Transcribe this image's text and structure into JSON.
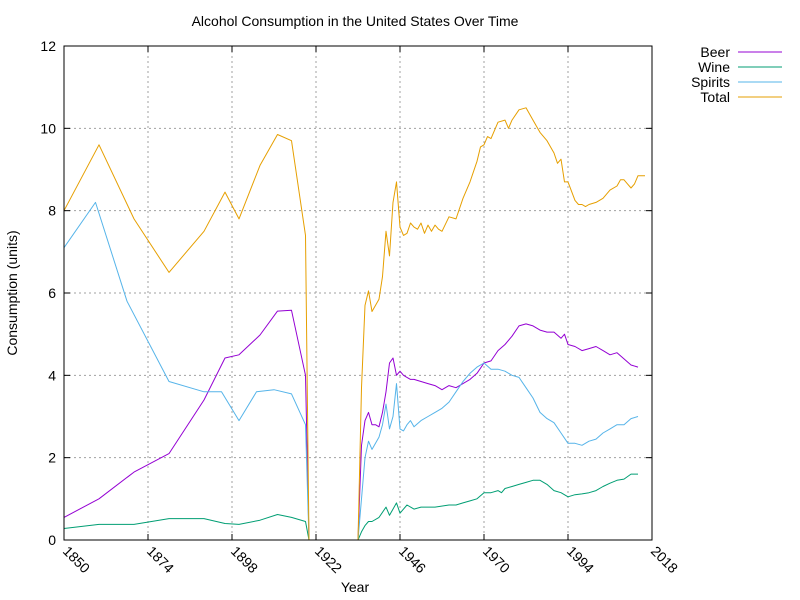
{
  "chart_data": {
    "type": "line",
    "title": "Alcohol Consumption in the United States Over Time",
    "xlabel": "Year",
    "ylabel": "Consumption (units)",
    "xlim": [
      1850,
      2018
    ],
    "ylim": [
      0,
      12
    ],
    "xticks": [
      1850,
      1874,
      1898,
      1922,
      1946,
      1970,
      1994,
      2018
    ],
    "yticks": [
      0,
      2,
      4,
      6,
      8,
      10,
      12
    ],
    "grid": true,
    "legend_position": "top-right, outside plot",
    "series": [
      {
        "name": "Beer",
        "color": "#9400d3",
        "points": [
          [
            1850,
            0.55
          ],
          [
            1860,
            1.0
          ],
          [
            1870,
            1.65
          ],
          [
            1880,
            2.1
          ],
          [
            1890,
            3.4
          ],
          [
            1896,
            4.42
          ],
          [
            1900,
            4.5
          ],
          [
            1906,
            4.98
          ],
          [
            1911,
            5.56
          ],
          [
            1915,
            5.58
          ],
          [
            1919,
            4.0
          ],
          [
            1920,
            0.0
          ],
          [
            1934,
            0.0
          ],
          [
            1935,
            2.3
          ],
          [
            1936,
            2.9
          ],
          [
            1937,
            3.1
          ],
          [
            1938,
            2.8
          ],
          [
            1939,
            2.8
          ],
          [
            1940,
            2.75
          ],
          [
            1941,
            3.1
          ],
          [
            1942,
            3.6
          ],
          [
            1943,
            4.3
          ],
          [
            1944,
            4.42
          ],
          [
            1945,
            4.0
          ],
          [
            1946,
            4.1
          ],
          [
            1947,
            4.0
          ],
          [
            1948,
            3.95
          ],
          [
            1949,
            3.9
          ],
          [
            1950,
            3.9
          ],
          [
            1952,
            3.85
          ],
          [
            1954,
            3.8
          ],
          [
            1956,
            3.75
          ],
          [
            1958,
            3.65
          ],
          [
            1960,
            3.75
          ],
          [
            1962,
            3.7
          ],
          [
            1964,
            3.8
          ],
          [
            1966,
            3.9
          ],
          [
            1968,
            4.05
          ],
          [
            1970,
            4.3
          ],
          [
            1972,
            4.35
          ],
          [
            1974,
            4.6
          ],
          [
            1976,
            4.75
          ],
          [
            1978,
            4.95
          ],
          [
            1980,
            5.2
          ],
          [
            1982,
            5.25
          ],
          [
            1984,
            5.2
          ],
          [
            1986,
            5.1
          ],
          [
            1988,
            5.05
          ],
          [
            1990,
            5.05
          ],
          [
            1992,
            4.9
          ],
          [
            1993,
            5.0
          ],
          [
            1994,
            4.75
          ],
          [
            1996,
            4.7
          ],
          [
            1998,
            4.6
          ],
          [
            2000,
            4.65
          ],
          [
            2002,
            4.7
          ],
          [
            2004,
            4.6
          ],
          [
            2006,
            4.5
          ],
          [
            2008,
            4.55
          ],
          [
            2010,
            4.4
          ],
          [
            2012,
            4.25
          ],
          [
            2014,
            4.2
          ]
        ]
      },
      {
        "name": "Wine",
        "color": "#009e73",
        "points": [
          [
            1850,
            0.28
          ],
          [
            1860,
            0.38
          ],
          [
            1870,
            0.38
          ],
          [
            1880,
            0.52
          ],
          [
            1890,
            0.52
          ],
          [
            1896,
            0.4
          ],
          [
            1900,
            0.38
          ],
          [
            1906,
            0.48
          ],
          [
            1911,
            0.62
          ],
          [
            1915,
            0.55
          ],
          [
            1919,
            0.45
          ],
          [
            1920,
            0.0
          ],
          [
            1934,
            0.0
          ],
          [
            1935,
            0.2
          ],
          [
            1936,
            0.35
          ],
          [
            1937,
            0.45
          ],
          [
            1938,
            0.45
          ],
          [
            1940,
            0.55
          ],
          [
            1942,
            0.8
          ],
          [
            1943,
            0.6
          ],
          [
            1944,
            0.75
          ],
          [
            1945,
            0.9
          ],
          [
            1946,
            0.65
          ],
          [
            1947,
            0.75
          ],
          [
            1948,
            0.85
          ],
          [
            1950,
            0.75
          ],
          [
            1952,
            0.8
          ],
          [
            1956,
            0.8
          ],
          [
            1960,
            0.85
          ],
          [
            1962,
            0.85
          ],
          [
            1964,
            0.9
          ],
          [
            1966,
            0.95
          ],
          [
            1968,
            1.0
          ],
          [
            1970,
            1.15
          ],
          [
            1972,
            1.15
          ],
          [
            1974,
            1.2
          ],
          [
            1975,
            1.15
          ],
          [
            1976,
            1.25
          ],
          [
            1978,
            1.3
          ],
          [
            1980,
            1.35
          ],
          [
            1982,
            1.4
          ],
          [
            1984,
            1.45
          ],
          [
            1986,
            1.45
          ],
          [
            1988,
            1.35
          ],
          [
            1990,
            1.2
          ],
          [
            1992,
            1.15
          ],
          [
            1994,
            1.05
          ],
          [
            1996,
            1.1
          ],
          [
            1998,
            1.12
          ],
          [
            2000,
            1.15
          ],
          [
            2002,
            1.2
          ],
          [
            2004,
            1.3
          ],
          [
            2006,
            1.38
          ],
          [
            2008,
            1.45
          ],
          [
            2010,
            1.48
          ],
          [
            2012,
            1.6
          ],
          [
            2014,
            1.6
          ]
        ]
      },
      {
        "name": "Spirits",
        "color": "#56b4e9",
        "points": [
          [
            1850,
            7.1
          ],
          [
            1859,
            8.2
          ],
          [
            1868,
            5.8
          ],
          [
            1880,
            3.85
          ],
          [
            1890,
            3.6
          ],
          [
            1895,
            3.6
          ],
          [
            1900,
            2.9
          ],
          [
            1905,
            3.6
          ],
          [
            1910,
            3.65
          ],
          [
            1915,
            3.55
          ],
          [
            1919,
            2.8
          ],
          [
            1920,
            0.0
          ],
          [
            1934,
            0.0
          ],
          [
            1935,
            1.0
          ],
          [
            1936,
            2.0
          ],
          [
            1937,
            2.4
          ],
          [
            1938,
            2.2
          ],
          [
            1940,
            2.5
          ],
          [
            1941,
            2.8
          ],
          [
            1942,
            3.3
          ],
          [
            1943,
            2.7
          ],
          [
            1944,
            3.0
          ],
          [
            1945,
            3.8
          ],
          [
            1946,
            2.7
          ],
          [
            1947,
            2.65
          ],
          [
            1948,
            2.8
          ],
          [
            1949,
            2.9
          ],
          [
            1950,
            2.75
          ],
          [
            1952,
            2.9
          ],
          [
            1954,
            3.0
          ],
          [
            1956,
            3.1
          ],
          [
            1958,
            3.2
          ],
          [
            1960,
            3.35
          ],
          [
            1962,
            3.6
          ],
          [
            1964,
            3.85
          ],
          [
            1966,
            4.05
          ],
          [
            1968,
            4.2
          ],
          [
            1970,
            4.3
          ],
          [
            1972,
            4.15
          ],
          [
            1974,
            4.15
          ],
          [
            1976,
            4.1
          ],
          [
            1978,
            4.0
          ],
          [
            1980,
            3.95
          ],
          [
            1982,
            3.7
          ],
          [
            1984,
            3.45
          ],
          [
            1986,
            3.1
          ],
          [
            1988,
            2.95
          ],
          [
            1990,
            2.85
          ],
          [
            1992,
            2.6
          ],
          [
            1994,
            2.35
          ],
          [
            1996,
            2.35
          ],
          [
            1998,
            2.3
          ],
          [
            2000,
            2.4
          ],
          [
            2002,
            2.45
          ],
          [
            2004,
            2.6
          ],
          [
            2006,
            2.7
          ],
          [
            2008,
            2.8
          ],
          [
            2010,
            2.8
          ],
          [
            2012,
            2.95
          ],
          [
            2014,
            3.0
          ]
        ]
      },
      {
        "name": "Total",
        "color": "#e69f00",
        "points": [
          [
            1850,
            8.0
          ],
          [
            1860,
            9.6
          ],
          [
            1870,
            7.8
          ],
          [
            1880,
            6.5
          ],
          [
            1890,
            7.5
          ],
          [
            1896,
            8.45
          ],
          [
            1900,
            7.8
          ],
          [
            1906,
            9.1
          ],
          [
            1911,
            9.85
          ],
          [
            1915,
            9.7
          ],
          [
            1919,
            7.4
          ],
          [
            1920,
            0.0
          ],
          [
            1934,
            0.0
          ],
          [
            1935,
            3.7
          ],
          [
            1936,
            5.7
          ],
          [
            1937,
            6.05
          ],
          [
            1938,
            5.55
          ],
          [
            1939,
            5.7
          ],
          [
            1940,
            5.85
          ],
          [
            1941,
            6.4
          ],
          [
            1942,
            7.5
          ],
          [
            1943,
            6.9
          ],
          [
            1944,
            8.2
          ],
          [
            1945,
            8.7
          ],
          [
            1946,
            7.6
          ],
          [
            1947,
            7.4
          ],
          [
            1948,
            7.45
          ],
          [
            1949,
            7.7
          ],
          [
            1950,
            7.6
          ],
          [
            1951,
            7.55
          ],
          [
            1952,
            7.7
          ],
          [
            1953,
            7.45
          ],
          [
            1954,
            7.65
          ],
          [
            1955,
            7.5
          ],
          [
            1956,
            7.65
          ],
          [
            1957,
            7.55
          ],
          [
            1958,
            7.5
          ],
          [
            1960,
            7.85
          ],
          [
            1962,
            7.8
          ],
          [
            1964,
            8.3
          ],
          [
            1966,
            8.7
          ],
          [
            1968,
            9.2
          ],
          [
            1969,
            9.55
          ],
          [
            1970,
            9.6
          ],
          [
            1971,
            9.8
          ],
          [
            1972,
            9.75
          ],
          [
            1974,
            10.15
          ],
          [
            1976,
            10.2
          ],
          [
            1977,
            10.0
          ],
          [
            1978,
            10.2
          ],
          [
            1980,
            10.45
          ],
          [
            1982,
            10.5
          ],
          [
            1984,
            10.2
          ],
          [
            1986,
            9.9
          ],
          [
            1988,
            9.7
          ],
          [
            1990,
            9.4
          ],
          [
            1991,
            9.15
          ],
          [
            1992,
            9.25
          ],
          [
            1993,
            8.7
          ],
          [
            1994,
            8.7
          ],
          [
            1996,
            8.25
          ],
          [
            1997,
            8.15
          ],
          [
            1998,
            8.15
          ],
          [
            1999,
            8.1
          ],
          [
            2000,
            8.15
          ],
          [
            2002,
            8.2
          ],
          [
            2004,
            8.3
          ],
          [
            2006,
            8.5
          ],
          [
            2008,
            8.6
          ],
          [
            2009,
            8.75
          ],
          [
            2010,
            8.75
          ],
          [
            2011,
            8.65
          ],
          [
            2012,
            8.55
          ],
          [
            2013,
            8.65
          ],
          [
            2014,
            8.85
          ],
          [
            2016,
            8.85
          ]
        ]
      }
    ]
  }
}
